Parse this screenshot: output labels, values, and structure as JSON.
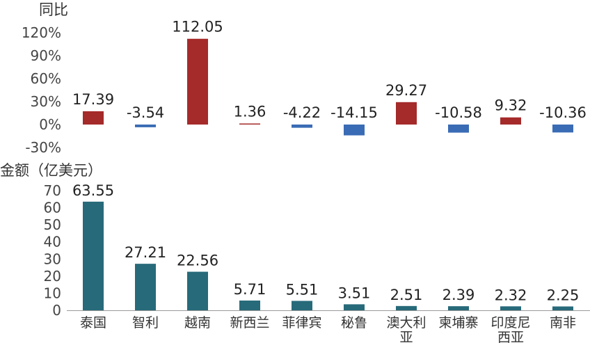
{
  "chart_data": [
    {
      "type": "bar",
      "title": "同比",
      "categories": [
        "泰国",
        "智利",
        "越南",
        "新西兰",
        "菲律宾",
        "秘鲁",
        "澳大利亚",
        "柬埔寨",
        "印度尼西亚",
        "南非"
      ],
      "values": [
        17.39,
        -3.54,
        112.05,
        1.36,
        -4.22,
        -14.15,
        29.27,
        -10.58,
        9.32,
        -10.36
      ],
      "value_labels": [
        "17.39",
        "-3.54",
        "112.05",
        "1.36",
        "-4.22",
        "-14.15",
        "29.27",
        "-10.58",
        "9.32",
        "-10.36"
      ],
      "yticks": [
        "120%",
        "90%",
        "60%",
        "30%",
        "0%",
        "-30%"
      ],
      "ylim": [
        -30,
        120
      ],
      "colors": {
        "positive": "#A52A2A",
        "negative": "#3A6CB5"
      },
      "grid": false,
      "legend": "none"
    },
    {
      "type": "bar",
      "title": "金额（亿美元）",
      "categories": [
        "泰国",
        "智利",
        "越南",
        "新西兰",
        "菲律宾",
        "秘鲁",
        "澳大利亚",
        "柬埔寨",
        "印度尼西亚",
        "南非"
      ],
      "category_lines": [
        [
          "泰国"
        ],
        [
          "智利"
        ],
        [
          "越南"
        ],
        [
          "新西兰"
        ],
        [
          "菲律宾"
        ],
        [
          "秘鲁"
        ],
        [
          "澳大利",
          "亚"
        ],
        [
          "柬埔寨"
        ],
        [
          "印度尼",
          "西亚"
        ],
        [
          "南非"
        ]
      ],
      "values": [
        63.55,
        27.21,
        22.56,
        5.71,
        5.51,
        3.51,
        2.51,
        2.39,
        2.32,
        2.25
      ],
      "value_labels": [
        "63.55",
        "27.21",
        "22.56",
        "5.71",
        "5.51",
        "3.51",
        "2.51",
        "2.39",
        "2.32",
        "2.25"
      ],
      "yticks": [
        "70",
        "60",
        "50",
        "40",
        "30",
        "20",
        "10",
        "0"
      ],
      "ylim": [
        0,
        70
      ],
      "colors": {
        "bar": "#276A7A",
        "axis": "#999999"
      },
      "grid": false,
      "legend": "none"
    }
  ]
}
